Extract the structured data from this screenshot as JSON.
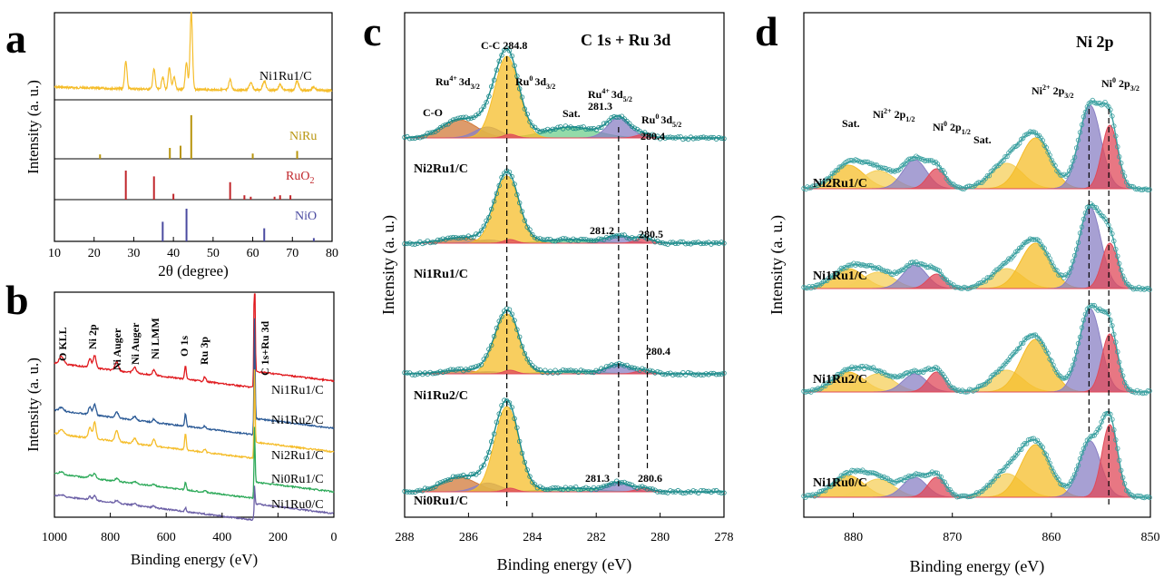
{
  "panels": {
    "a": {
      "label": "a",
      "ylabel": "Intensity (a. u.)",
      "xlabel": "2θ (degree)",
      "xticks": [
        "10",
        "20",
        "30",
        "40",
        "50",
        "60",
        "70",
        "80"
      ],
      "rows": [
        "Ni1Ru1/C",
        "NiRu",
        "RuO2",
        "NiO"
      ]
    },
    "b": {
      "label": "b",
      "ylabel": "Intensity (a. u.)",
      "xlabel": "Binding energy (eV)",
      "xticks": [
        "1000",
        "800",
        "600",
        "400",
        "200",
        "0"
      ],
      "peaks": [
        "O KLL",
        "Ni 2p",
        "Ni Auger",
        "Ni Auger",
        "Ni LMM",
        "O 1s",
        "Ru 3p",
        "C 1s+Ru 3d"
      ],
      "traces": [
        "Ni1Ru1/C",
        "Ni1Ru2/C",
        "Ni2Ru1/C",
        "Ni0Ru1/C",
        "Ni1Ru0/C"
      ]
    },
    "c": {
      "label": "c",
      "title": "C 1s + Ru 3d",
      "ylabel": "Intensity (a. u.)",
      "xlabel": "Binding energy (eV)",
      "xticks": [
        "288",
        "286",
        "284",
        "282",
        "280",
        "278"
      ],
      "traces": [
        "Ni2Ru1/C",
        "Ni1Ru1/C",
        "Ni1Ru2/C",
        "Ni0Ru1/C"
      ],
      "ann": {
        "cc": "C-C 284.8",
        "co": "C-O",
        "ru4p": "Ru",
        "ru4p_sup": "4+",
        "ru4p_main": "3d",
        "ru4p_sub": "3/2",
        "ru0p": "Ru",
        "ru0p_sup": "0",
        "ru0p_main": "3d",
        "ru0p_sub": "3/2",
        "sat": "Sat.",
        "ru4f": "Ru",
        "ru4f_sup": "4+",
        "ru4f_main": "3d",
        "ru4f_sub": "5/2",
        "ru0f": "Ru",
        "ru0f_sup": "0",
        "ru0f_main": "3d",
        "ru0f_sub": "5/2",
        "v1": "281.3",
        "v2": "280.4",
        "v3": "281.2",
        "v4": "280.5",
        "v5": "280.4",
        "v6": "281.3",
        "v7": "280.6"
      }
    },
    "d": {
      "label": "d",
      "title": "Ni 2p",
      "ylabel": "Intensity (a. u.)",
      "xlabel": "Binding energy (eV)",
      "xticks": [
        "880",
        "870",
        "860",
        "850"
      ],
      "traces": [
        "Ni2Ru1/C",
        "Ni1Ru1/C",
        "Ni1Ru2/C",
        "Ni1Ru0/C"
      ],
      "ann": {
        "sat1": "Sat.",
        "sat2": "Sat.",
        "ni2h": "Ni",
        "ni2h_sup": "2+",
        "ni2h_main": " 2p",
        "ni2h_sub": "1/2",
        "ni0h": "Ni",
        "ni0h_sup": "0",
        "ni0h_main": " 2p",
        "ni0h_sub": "1/2",
        "ni2t": "Ni",
        "ni2t_sup": "2+",
        "ni2t_main": " 2p",
        "ni2t_sub": "3/2",
        "ni0t": "Ni",
        "ni0t_sup": "0",
        "ni0t_main": " 2p",
        "ni0t_sub": "3/2"
      }
    }
  },
  "colors": {
    "xrd": "#f5bd2a",
    "nirу": "#b8950e",
    "ruo2": "#c0262b",
    "nio": "#4a4aa0",
    "red": "#e0191e",
    "blue": "#2b5a96",
    "yellow": "#f5bd2a",
    "green": "#2eaa5a",
    "purple": "#6b5fa6",
    "env": "#1b8a8a",
    "orange": "#d27a3a",
    "violet": "#8a80c4",
    "rose": "#e04a5a",
    "teal": "#3ea08a"
  },
  "chart_data": [
    {
      "type": "bar",
      "title": "",
      "xlabel": "2θ (degree)",
      "ylabel": "Intensity (a. u.)",
      "xlim": [
        10,
        80
      ],
      "series": [
        {
          "name": "NiRu",
          "x": [
            21.5,
            39.1,
            41.8,
            44.5,
            60.0,
            71.2
          ],
          "values": [
            0.1,
            0.25,
            0.3,
            1.0,
            0.12,
            0.18
          ]
        },
        {
          "name": "RuO2",
          "x": [
            28.0,
            35.1,
            40.0,
            54.3,
            57.9,
            59.5,
            65.5,
            66.9,
            69.5
          ],
          "values": [
            1.0,
            0.8,
            0.2,
            0.6,
            0.15,
            0.1,
            0.1,
            0.15,
            0.15
          ]
        },
        {
          "name": "NiO",
          "x": [
            37.3,
            43.3,
            62.9,
            75.4
          ],
          "values": [
            0.6,
            1.0,
            0.4,
            0.1
          ]
        }
      ]
    },
    {
      "type": "line",
      "xlabel": "Binding energy (eV)",
      "ylabel": "Intensity (a. u.)",
      "xlim": [
        1000,
        0
      ],
      "series": [
        {
          "name": "Ni1Ru1/C"
        },
        {
          "name": "Ni1Ru2/C"
        },
        {
          "name": "Ni2Ru1/C"
        },
        {
          "name": "Ni0Ru1/C"
        },
        {
          "name": "Ni1Ru0/C"
        }
      ]
    },
    {
      "type": "line",
      "title": "C 1s + Ru 3d",
      "xlabel": "Binding energy (eV)",
      "ylabel": "Intensity (a. u.)",
      "xlim": [
        288,
        278
      ],
      "series": [
        {
          "name": "Ni2Ru1/C",
          "x": [
            284.8,
            281.3,
            280.4
          ],
          "values": [
            1.0,
            0.25,
            0.05
          ]
        },
        {
          "name": "Ni1Ru1/C",
          "x": [
            284.8,
            281.2,
            280.5
          ],
          "values": [
            1.0,
            0.1,
            0.08
          ]
        },
        {
          "name": "Ni1Ru2/C",
          "x": [
            284.8,
            281.3,
            280.4
          ],
          "values": [
            0.85,
            0.12,
            0.05
          ]
        },
        {
          "name": "Ni0Ru1/C",
          "x": [
            284.8,
            281.3,
            280.6
          ],
          "values": [
            1.0,
            0.12,
            0.05
          ]
        }
      ]
    },
    {
      "type": "line",
      "title": "Ni 2p",
      "xlabel": "Binding energy (eV)",
      "ylabel": "Intensity (a. u.)",
      "xlim": [
        885,
        850
      ],
      "series": [
        {
          "name": "Ni2Ru1/C",
          "x": [
            856.0,
            854.2,
            873.6,
            871.8,
            861.5,
            879.8
          ],
          "values": [
            1.0,
            0.8,
            0.45,
            0.3,
            0.7,
            0.35
          ]
        },
        {
          "name": "Ni1Ru1/C",
          "x": [
            856.0,
            854.2,
            873.6,
            871.8,
            861.5,
            879.8
          ],
          "values": [
            1.0,
            0.55,
            0.35,
            0.2,
            0.55,
            0.3
          ]
        },
        {
          "name": "Ni1Ru2/C",
          "x": [
            856.0,
            854.2,
            873.6,
            871.8,
            861.5,
            879.8
          ],
          "values": [
            1.0,
            0.7,
            0.3,
            0.3,
            0.7,
            0.3
          ]
        },
        {
          "name": "Ni1Ru0/C",
          "x": [
            856.0,
            854.2,
            873.6,
            871.8,
            861.5,
            879.8
          ],
          "values": [
            0.8,
            1.0,
            0.35,
            0.3,
            0.75,
            0.35
          ]
        }
      ]
    }
  ]
}
